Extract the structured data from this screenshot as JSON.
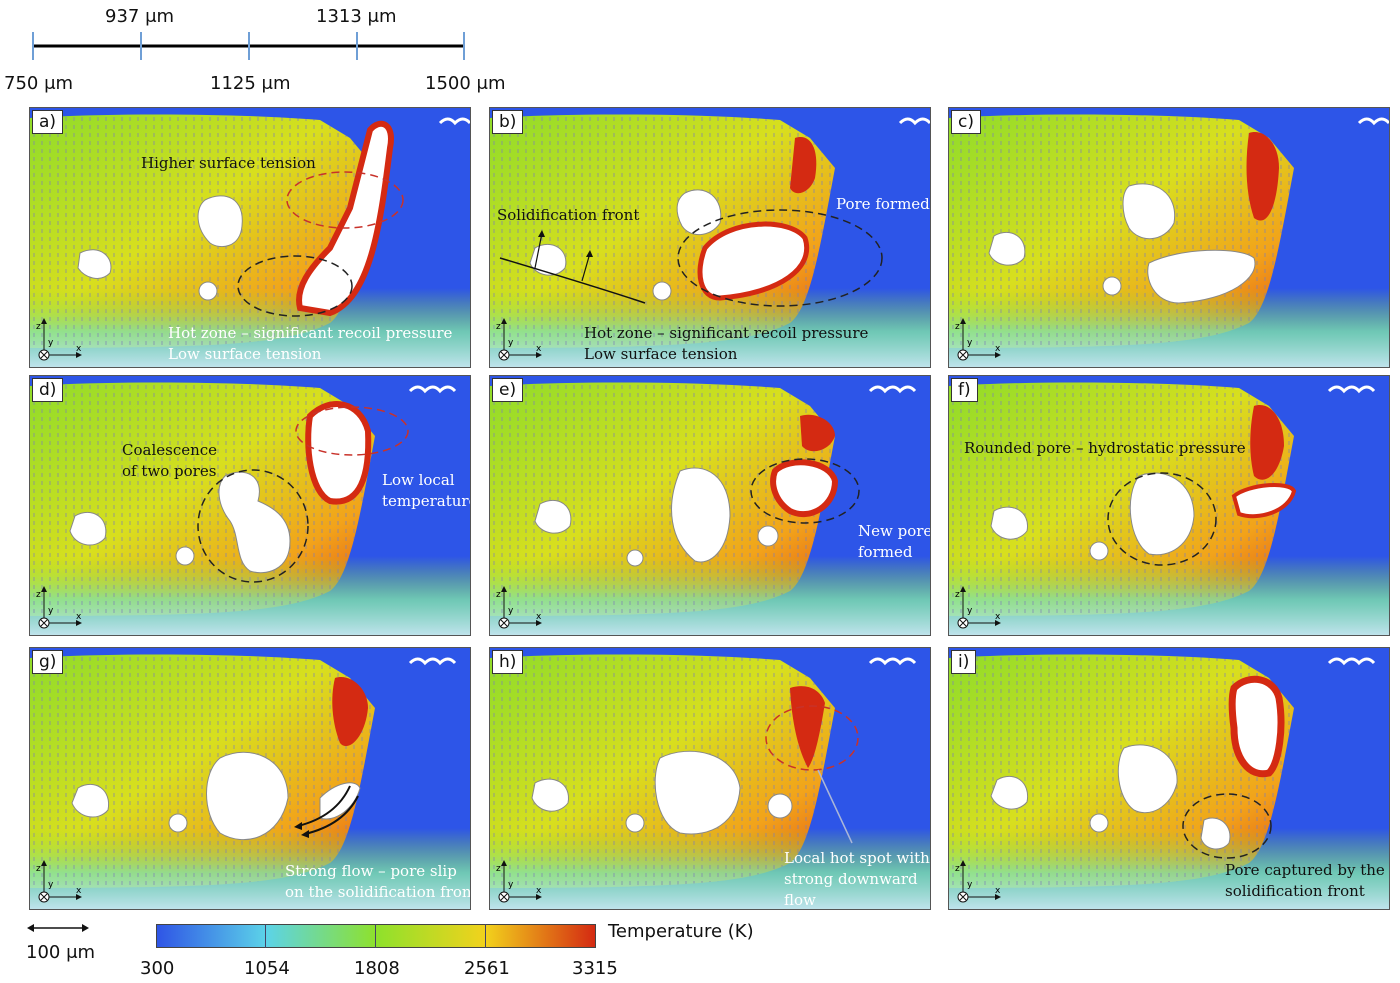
{
  "scale_bar": {
    "labels_top": [
      "937 μm",
      "1313 μm"
    ],
    "labels_bottom": [
      "750 μm",
      "1125 μm",
      "1500 μm"
    ]
  },
  "panels": [
    {
      "label": "a)",
      "annotations": [
        "Higher surface tension",
        "Hot zone – significant recoil pressure",
        "Low surface tension"
      ]
    },
    {
      "label": "b)",
      "annotations": [
        "Solidification front",
        "Pore formed",
        "Hot zone – significant recoil pressure",
        "Low surface tension"
      ]
    },
    {
      "label": "c)",
      "annotations": []
    },
    {
      "label": "d)",
      "annotations": [
        "Coalescence",
        "of two pores",
        "Low local",
        "temperature"
      ]
    },
    {
      "label": "e)",
      "annotations": [
        "New pore",
        "formed"
      ]
    },
    {
      "label": "f)",
      "annotations": [
        "Rounded pore – hydrostatic pressure"
      ]
    },
    {
      "label": "g)",
      "annotations": [
        "Strong flow – pore slip",
        "on the solidification front"
      ]
    },
    {
      "label": "h)",
      "annotations": [
        "Local hot spot with",
        "strong downward",
        "flow"
      ]
    },
    {
      "label": "i)",
      "annotations": [
        "Pore captured by the",
        "solidification front"
      ]
    }
  ],
  "axes_triad": {
    "z": "z",
    "y": "y",
    "x": "x"
  },
  "length_scale": "100 μm",
  "colorbar": {
    "title": "Temperature (K)",
    "ticks": [
      "300",
      "1054",
      "1808",
      "2561",
      "3315"
    ],
    "colors": [
      "#2f55e6",
      "#5cd3e8",
      "#8ee12c",
      "#f2d21c",
      "#d42a12"
    ]
  }
}
